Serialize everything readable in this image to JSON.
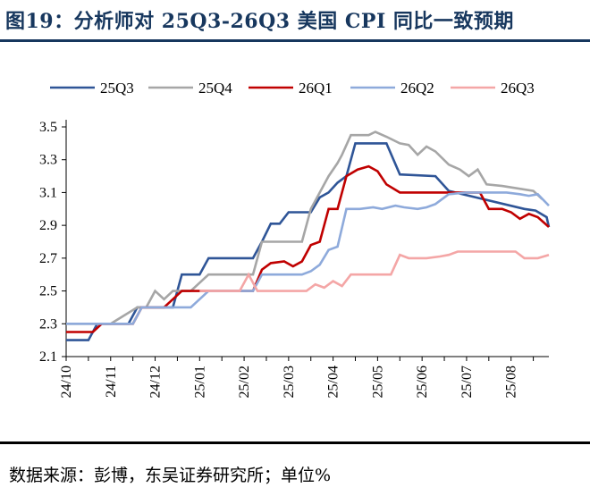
{
  "title": "图19：分析师对 25Q3-26Q3 美国 CPI 同比一致预期",
  "source": "数据来源：彭博，东吴证券研究所；单位%",
  "chart_data": {
    "type": "line",
    "title": "图19：分析师对 25Q3-26Q3 美国 CPI 同比一致预期",
    "xlabel": "",
    "ylabel": "",
    "unit": "%",
    "ylim": [
      2.1,
      3.6
    ],
    "yticks": [
      2.1,
      2.3,
      2.5,
      2.7,
      2.9,
      3.1,
      3.3,
      3.5
    ],
    "x_ticks": [
      "24/10",
      "24/11",
      "24/12",
      "25/01",
      "25/02",
      "25/03",
      "25/04",
      "25/05",
      "25/06",
      "25/07",
      "25/08"
    ],
    "x_domain": [
      0,
      10.85
    ],
    "legend_position": "top",
    "grid": false,
    "series": [
      {
        "name": "25Q3",
        "color": "#2f5597",
        "points": [
          [
            0,
            2.2
          ],
          [
            0.5,
            2.2
          ],
          [
            0.7,
            2.3
          ],
          [
            1.4,
            2.3
          ],
          [
            1.6,
            2.4
          ],
          [
            2.4,
            2.4
          ],
          [
            2.6,
            2.6
          ],
          [
            3.0,
            2.6
          ],
          [
            3.2,
            2.7
          ],
          [
            4.2,
            2.7
          ],
          [
            4.4,
            2.8
          ],
          [
            4.6,
            2.91
          ],
          [
            4.8,
            2.91
          ],
          [
            5.0,
            2.98
          ],
          [
            5.5,
            2.98
          ],
          [
            5.7,
            3.07
          ],
          [
            5.9,
            3.1
          ],
          [
            6.1,
            3.16
          ],
          [
            6.3,
            3.2
          ],
          [
            6.5,
            3.4
          ],
          [
            7.2,
            3.4
          ],
          [
            7.5,
            3.21
          ],
          [
            8.3,
            3.2
          ],
          [
            8.6,
            3.11
          ],
          [
            10.3,
            3.0
          ],
          [
            10.55,
            2.99
          ],
          [
            10.8,
            2.95
          ],
          [
            10.85,
            2.89
          ]
        ]
      },
      {
        "name": "25Q4",
        "color": "#a6a6a6",
        "points": [
          [
            0,
            2.3
          ],
          [
            1.0,
            2.3
          ],
          [
            1.6,
            2.4
          ],
          [
            1.8,
            2.4
          ],
          [
            2.0,
            2.5
          ],
          [
            2.2,
            2.45
          ],
          [
            2.4,
            2.5
          ],
          [
            2.8,
            2.5
          ],
          [
            3.0,
            2.55
          ],
          [
            3.2,
            2.6
          ],
          [
            4.2,
            2.6
          ],
          [
            4.3,
            2.7
          ],
          [
            4.4,
            2.8
          ],
          [
            5.3,
            2.8
          ],
          [
            5.5,
            3.0
          ],
          [
            5.7,
            3.1
          ],
          [
            5.9,
            3.2
          ],
          [
            6.1,
            3.28
          ],
          [
            6.2,
            3.33
          ],
          [
            6.4,
            3.45
          ],
          [
            6.8,
            3.45
          ],
          [
            6.95,
            3.47
          ],
          [
            7.2,
            3.44
          ],
          [
            7.5,
            3.4
          ],
          [
            7.7,
            3.39
          ],
          [
            7.9,
            3.33
          ],
          [
            8.1,
            3.38
          ],
          [
            8.3,
            3.35
          ],
          [
            8.6,
            3.27
          ],
          [
            8.85,
            3.24
          ],
          [
            9.05,
            3.2
          ],
          [
            9.25,
            3.24
          ],
          [
            9.45,
            3.15
          ],
          [
            9.8,
            3.14
          ],
          [
            10.5,
            3.11
          ],
          [
            10.7,
            3.06
          ]
        ]
      },
      {
        "name": "26Q1",
        "color": "#c00000",
        "points": [
          [
            0,
            2.25
          ],
          [
            0.6,
            2.25
          ],
          [
            0.8,
            2.3
          ],
          [
            1.5,
            2.3
          ],
          [
            1.7,
            2.4
          ],
          [
            2.2,
            2.4
          ],
          [
            2.4,
            2.45
          ],
          [
            2.6,
            2.5
          ],
          [
            3.2,
            2.5
          ],
          [
            3.5,
            2.5
          ],
          [
            4.2,
            2.5
          ],
          [
            4.4,
            2.63
          ],
          [
            4.6,
            2.67
          ],
          [
            4.9,
            2.68
          ],
          [
            5.1,
            2.65
          ],
          [
            5.3,
            2.68
          ],
          [
            5.5,
            2.78
          ],
          [
            5.7,
            2.8
          ],
          [
            5.9,
            3.0
          ],
          [
            6.1,
            3.0
          ],
          [
            6.3,
            3.2
          ],
          [
            6.55,
            3.24
          ],
          [
            6.8,
            3.26
          ],
          [
            7.0,
            3.23
          ],
          [
            7.2,
            3.15
          ],
          [
            7.5,
            3.1
          ],
          [
            8.5,
            3.1
          ],
          [
            9.3,
            3.1
          ],
          [
            9.5,
            3.0
          ],
          [
            9.8,
            3.0
          ],
          [
            10.0,
            2.98
          ],
          [
            10.2,
            2.94
          ],
          [
            10.4,
            2.97
          ],
          [
            10.6,
            2.95
          ],
          [
            10.85,
            2.89
          ]
        ]
      },
      {
        "name": "26Q2",
        "color": "#8eaadb",
        "points": [
          [
            0,
            2.3
          ],
          [
            0.6,
            2.3
          ],
          [
            0.8,
            2.3
          ],
          [
            1.5,
            2.3
          ],
          [
            1.7,
            2.4
          ],
          [
            2.8,
            2.4
          ],
          [
            3.0,
            2.45
          ],
          [
            3.2,
            2.5
          ],
          [
            4.2,
            2.5
          ],
          [
            4.4,
            2.6
          ],
          [
            5.3,
            2.6
          ],
          [
            5.5,
            2.62
          ],
          [
            5.7,
            2.66
          ],
          [
            5.9,
            2.75
          ],
          [
            6.1,
            2.77
          ],
          [
            6.3,
            3.0
          ],
          [
            6.6,
            3.0
          ],
          [
            6.9,
            3.01
          ],
          [
            7.1,
            3.0
          ],
          [
            7.4,
            3.02
          ],
          [
            7.6,
            3.01
          ],
          [
            7.9,
            3.0
          ],
          [
            8.1,
            3.01
          ],
          [
            8.3,
            3.03
          ],
          [
            8.6,
            3.09
          ],
          [
            9.0,
            3.1
          ],
          [
            9.6,
            3.1
          ],
          [
            9.9,
            3.1
          ],
          [
            10.2,
            3.09
          ],
          [
            10.4,
            3.08
          ],
          [
            10.6,
            3.09
          ],
          [
            10.85,
            3.02
          ]
        ]
      },
      {
        "name": "26Q3",
        "color": "#f4a6a6",
        "points": [
          [
            3.0,
            2.5
          ],
          [
            3.9,
            2.5
          ],
          [
            4.1,
            2.6
          ],
          [
            4.3,
            2.5
          ],
          [
            5.4,
            2.5
          ],
          [
            5.6,
            2.54
          ],
          [
            5.8,
            2.52
          ],
          [
            6.0,
            2.56
          ],
          [
            6.2,
            2.53
          ],
          [
            6.4,
            2.6
          ],
          [
            7.3,
            2.6
          ],
          [
            7.5,
            2.72
          ],
          [
            7.7,
            2.7
          ],
          [
            8.1,
            2.7
          ],
          [
            8.4,
            2.71
          ],
          [
            8.6,
            2.72
          ],
          [
            8.8,
            2.74
          ],
          [
            9.6,
            2.74
          ],
          [
            10.1,
            2.74
          ],
          [
            10.3,
            2.7
          ],
          [
            10.6,
            2.7
          ],
          [
            10.85,
            2.72
          ]
        ]
      }
    ]
  }
}
